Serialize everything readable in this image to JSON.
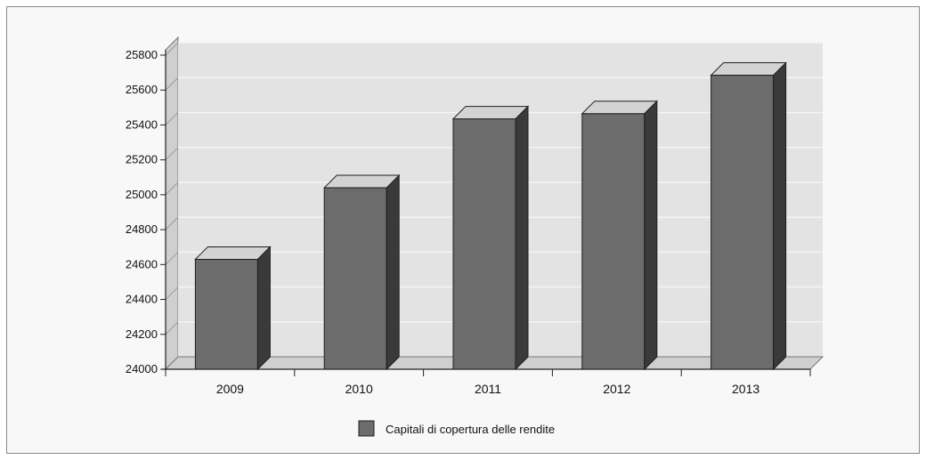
{
  "chart_data": {
    "type": "bar",
    "categories": [
      "2009",
      "2010",
      "2011",
      "2012",
      "2013"
    ],
    "series": [
      {
        "name": "Capitali di copertura delle rendite",
        "values": [
          24630,
          25040,
          25435,
          25465,
          25685
        ]
      }
    ],
    "yticks": [
      "25800",
      "25600",
      "25400",
      "25200",
      "25000",
      "24800",
      "24600",
      "24400",
      "24200",
      "24000"
    ],
    "ylim": [
      24000,
      25800
    ],
    "grid": true,
    "legend_position": "bottom-center",
    "title": "",
    "xlabel": "",
    "ylabel": "",
    "colors": {
      "bar_front": "#6c6c6c",
      "bar_top": "#d3d3d3",
      "bar_side": "#3a3a3a",
      "back_wall": "#e3e3e3",
      "side_wall": "#cfcfcf",
      "floor": "#cfcfcf"
    }
  }
}
